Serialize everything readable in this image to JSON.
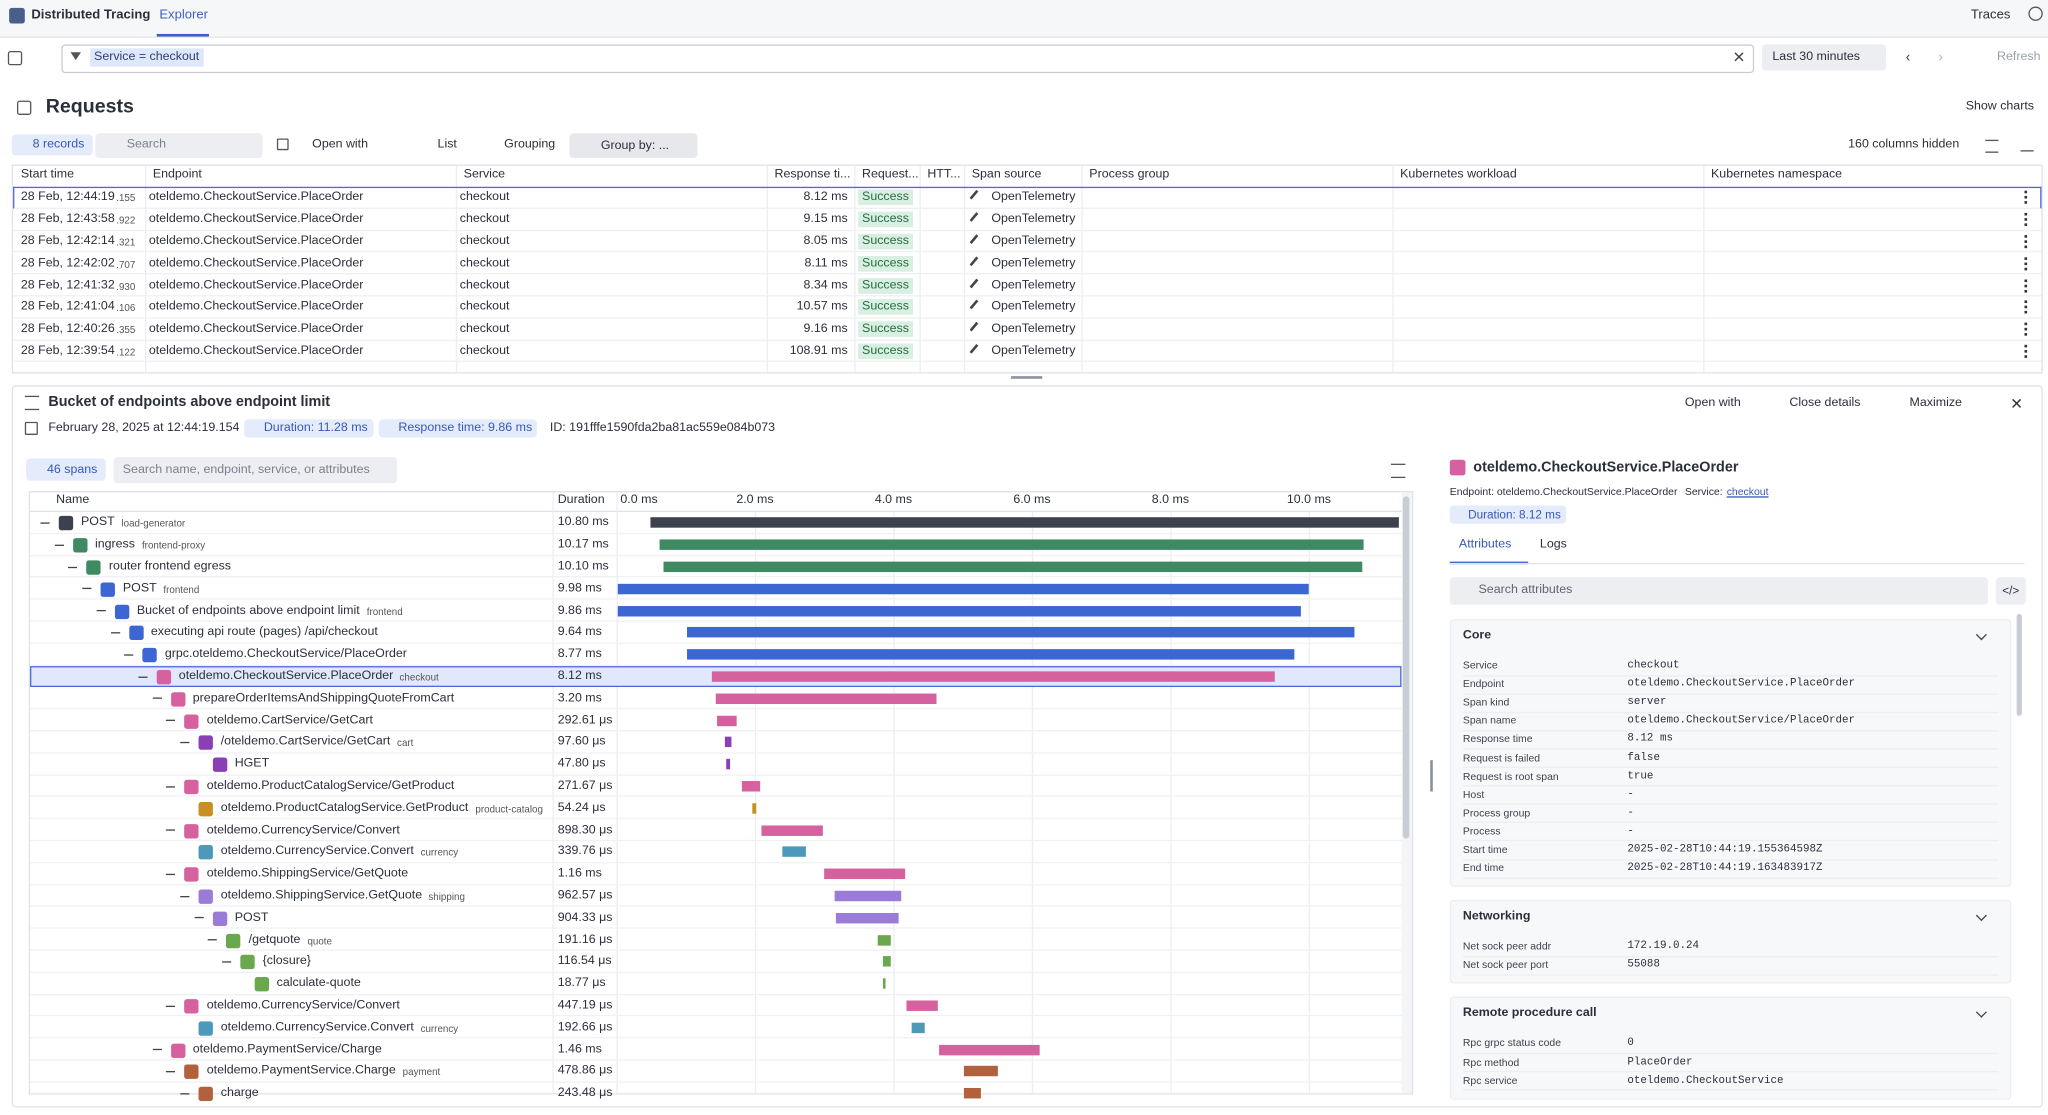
{
  "header": {
    "app": "Distributed Tracing",
    "tab": "Explorer",
    "new_button": "Traces"
  },
  "filter": {
    "token": "Service = checkout",
    "timeframe": "Last 30 minutes",
    "refresh": "Refresh"
  },
  "requests": {
    "title": "Requests",
    "show_charts": "Show charts",
    "records": "8 records",
    "search": "Search",
    "open_with": "Open with",
    "list": "List",
    "grouping": "Grouping",
    "group_by": "Group by: ...",
    "columns_hidden": "160 columns hidden",
    "columns": [
      "Start time",
      "Endpoint",
      "Service",
      "Response ti...",
      "Request...",
      "HTT...",
      "Span source",
      "Process group",
      "Kubernetes workload",
      "Kubernetes namespace"
    ],
    "selected_row": 0,
    "rows": [
      [
        "28 Feb, 12:44:19",
        ".155",
        "oteldemo.CheckoutService.PlaceOrder",
        "checkout",
        "8.12 ms",
        "Success",
        "OpenTelemetry"
      ],
      [
        "28 Feb, 12:43:58",
        ".922",
        "oteldemo.CheckoutService.PlaceOrder",
        "checkout",
        "9.15 ms",
        "Success",
        "OpenTelemetry"
      ],
      [
        "28 Feb, 12:42:14",
        ".321",
        "oteldemo.CheckoutService.PlaceOrder",
        "checkout",
        "8.05 ms",
        "Success",
        "OpenTelemetry"
      ],
      [
        "28 Feb, 12:42:02",
        ".707",
        "oteldemo.CheckoutService.PlaceOrder",
        "checkout",
        "8.11 ms",
        "Success",
        "OpenTelemetry"
      ],
      [
        "28 Feb, 12:41:32",
        ".930",
        "oteldemo.CheckoutService.PlaceOrder",
        "checkout",
        "8.34 ms",
        "Success",
        "OpenTelemetry"
      ],
      [
        "28 Feb, 12:41:04",
        ".106",
        "oteldemo.CheckoutService.PlaceOrder",
        "checkout",
        "10.57 ms",
        "Success",
        "OpenTelemetry"
      ],
      [
        "28 Feb, 12:40:26",
        ".355",
        "oteldemo.CheckoutService.PlaceOrder",
        "checkout",
        "9.16 ms",
        "Success",
        "OpenTelemetry"
      ],
      [
        "28 Feb, 12:39:54",
        ".122",
        "oteldemo.CheckoutService.PlaceOrder",
        "checkout",
        "108.91 ms",
        "Success",
        "OpenTelemetry"
      ]
    ]
  },
  "details": {
    "title": "Bucket of endpoints above endpoint limit",
    "date": "February 28, 2025 at 12:44:19.154",
    "duration": "Duration: 11.28 ms",
    "response_time": "Response time: 9.86 ms",
    "id": "ID: 191fffe1590fda2ba81ac559e084b073",
    "open_with": "Open with",
    "close": "Close details",
    "maximize": "Maximize",
    "spans_count": "46 spans",
    "search": "Search name, endpoint, service, or attributes",
    "columns": [
      "Name",
      "Duration"
    ],
    "timeline": {
      "xlim": [
        0,
        11.28
      ],
      "ticks": [
        {
          "value": 0,
          "label": "0.0 ms"
        },
        {
          "value": 2,
          "label": "2.0 ms"
        },
        {
          "value": 4,
          "label": "4.0 ms"
        },
        {
          "value": 6,
          "label": "6.0 ms"
        },
        {
          "value": 8,
          "label": "8.0 ms"
        },
        {
          "value": 10,
          "label": "10.0 ms"
        }
      ]
    },
    "selected_span": 7,
    "spans": [
      {
        "name": "POST",
        "service": "load-generator",
        "duration": "10.80 ms",
        "duration_ms": 10.8,
        "start_ms": 0.49,
        "depth": 0,
        "color": "#3d414d"
      },
      {
        "name": "ingress",
        "service": "frontend-proxy",
        "duration": "10.17 ms",
        "duration_ms": 10.17,
        "start_ms": 0.62,
        "depth": 1,
        "color": "#3f8a63"
      },
      {
        "name": "router frontend egress",
        "duration": "10.10 ms",
        "duration_ms": 10.1,
        "start_ms": 0.68,
        "depth": 2,
        "color": "#3f8a63"
      },
      {
        "name": "POST",
        "service": "frontend",
        "duration": "9.98 ms",
        "duration_ms": 9.98,
        "start_ms": 0.02,
        "depth": 3,
        "color": "#3c66d2"
      },
      {
        "name": "Bucket of endpoints above endpoint limit",
        "service": "frontend",
        "duration": "9.86 ms",
        "duration_ms": 9.86,
        "start_ms": 0.02,
        "depth": 4,
        "color": "#3c66d2"
      },
      {
        "name": "executing api route (pages) /api/checkout",
        "duration": "9.64 ms",
        "duration_ms": 9.64,
        "start_ms": 1.02,
        "depth": 5,
        "color": "#3c66d2"
      },
      {
        "name": "grpc.oteldemo.CheckoutService/PlaceOrder",
        "duration": "8.77 ms",
        "duration_ms": 8.77,
        "start_ms": 1.02,
        "depth": 6,
        "color": "#3c66d2"
      },
      {
        "name": "oteldemo.CheckoutService.PlaceOrder",
        "service": "checkout",
        "duration": "8.12 ms",
        "duration_ms": 8.12,
        "start_ms": 1.38,
        "depth": 7,
        "color": "#d6619f"
      },
      {
        "name": "prepareOrderItemsAndShippingQuoteFromCart",
        "duration": "3.20 ms",
        "duration_ms": 3.2,
        "start_ms": 1.43,
        "depth": 8,
        "color": "#d6619f"
      },
      {
        "name": "oteldemo.CartService/GetCart",
        "duration": "292.61 μs",
        "duration_ms": 0.29261,
        "start_ms": 1.45,
        "depth": 9,
        "color": "#d6619f"
      },
      {
        "name": "/oteldemo.CartService/GetCart",
        "service": "cart",
        "duration": "97.60 μs",
        "duration_ms": 0.0976,
        "start_ms": 1.57,
        "depth": 10,
        "color": "#8b3fb5"
      },
      {
        "name": "HGET",
        "duration": "47.80 μs",
        "duration_ms": 0.0478,
        "start_ms": 1.59,
        "depth": 11,
        "color": "#8b3fb5"
      },
      {
        "name": "oteldemo.ProductCatalogService/GetProduct",
        "duration": "271.67 μs",
        "duration_ms": 0.27167,
        "start_ms": 1.81,
        "depth": 9,
        "color": "#d6619f"
      },
      {
        "name": "oteldemo.ProductCatalogService.GetProduct",
        "service": "product-catalog",
        "duration": "54.24 μs",
        "duration_ms": 0.05424,
        "start_ms": 1.96,
        "depth": 10,
        "color": "#c9901f"
      },
      {
        "name": "oteldemo.CurrencyService/Convert",
        "duration": "898.30 μs",
        "duration_ms": 0.8983,
        "start_ms": 2.09,
        "depth": 9,
        "color": "#d6619f"
      },
      {
        "name": "oteldemo.CurrencyService.Convert",
        "service": "currency",
        "duration": "339.76 μs",
        "duration_ms": 0.33976,
        "start_ms": 2.4,
        "depth": 10,
        "color": "#4c99b9"
      },
      {
        "name": "oteldemo.ShippingService/GetQuote",
        "duration": "1.16 ms",
        "duration_ms": 1.16,
        "start_ms": 3.0,
        "depth": 9,
        "color": "#d6619f"
      },
      {
        "name": "oteldemo.ShippingService.GetQuote",
        "service": "shipping",
        "duration": "962.57 μs",
        "duration_ms": 0.96257,
        "start_ms": 3.15,
        "depth": 10,
        "color": "#9b7bd8"
      },
      {
        "name": "POST",
        "duration": "904.33 μs",
        "duration_ms": 0.90433,
        "start_ms": 3.17,
        "depth": 11,
        "color": "#9b7bd8"
      },
      {
        "name": "/getquote",
        "service": "quote",
        "duration": "191.16 μs",
        "duration_ms": 0.19116,
        "start_ms": 3.77,
        "depth": 12,
        "color": "#6aa84f"
      },
      {
        "name": "{closure}",
        "duration": "116.54 μs",
        "duration_ms": 0.11654,
        "start_ms": 3.85,
        "depth": 13,
        "color": "#6aa84f"
      },
      {
        "name": "calculate-quote",
        "duration": "18.77 μs",
        "duration_ms": 0.01877,
        "start_ms": 3.85,
        "depth": 14,
        "color": "#6aa84f"
      },
      {
        "name": "oteldemo.CurrencyService/Convert",
        "duration": "447.19 μs",
        "duration_ms": 0.44719,
        "start_ms": 4.19,
        "depth": 9,
        "color": "#d6619f"
      },
      {
        "name": "oteldemo.CurrencyService.Convert",
        "service": "currency",
        "duration": "192.66 μs",
        "duration_ms": 0.19266,
        "start_ms": 4.26,
        "depth": 10,
        "color": "#4c99b9"
      },
      {
        "name": "oteldemo.PaymentService/Charge",
        "duration": "1.46 ms",
        "duration_ms": 1.46,
        "start_ms": 4.66,
        "depth": 8,
        "color": "#d6619f"
      },
      {
        "name": "oteldemo.PaymentService.Charge",
        "service": "payment",
        "duration": "478.86 μs",
        "duration_ms": 0.47886,
        "start_ms": 5.02,
        "depth": 9,
        "color": "#b1613b"
      },
      {
        "name": "charge",
        "duration": "243.48 μs",
        "duration_ms": 0.24348,
        "start_ms": 5.02,
        "depth": 10,
        "color": "#b1613b"
      }
    ]
  },
  "span_panel": {
    "title": "oteldemo.CheckoutService.PlaceOrder",
    "endpoint": "Endpoint: oteldemo.CheckoutService.PlaceOrder",
    "service_label": "Service:",
    "service": "checkout",
    "duration": "Duration: 8.12 ms",
    "tabs": [
      "Attributes",
      "Logs"
    ],
    "search": "Search attributes",
    "sections": [
      {
        "title": "Core",
        "rows": [
          [
            "Service",
            "checkout"
          ],
          [
            "Endpoint",
            "oteldemo.CheckoutService.PlaceOrder"
          ],
          [
            "Span kind",
            "server"
          ],
          [
            "Span name",
            "oteldemo.CheckoutService/PlaceOrder"
          ],
          [
            "Response time",
            "8.12 ms"
          ],
          [
            "Request is failed",
            "false"
          ],
          [
            "Request is root span",
            "true"
          ],
          [
            "Host",
            "-"
          ],
          [
            "Process group",
            "-"
          ],
          [
            "Process",
            "-"
          ],
          [
            "Start time",
            "2025-02-28T10:44:19.155364598Z"
          ],
          [
            "End time",
            "2025-02-28T10:44:19.163483917Z"
          ]
        ]
      },
      {
        "title": "Networking",
        "rows": [
          [
            "Net sock peer addr",
            "172.19.0.24"
          ],
          [
            "Net sock peer port",
            "55088"
          ]
        ]
      },
      {
        "title": "Remote procedure call",
        "rows": [
          [
            "Rpc grpc status code",
            "0"
          ],
          [
            "Rpc method",
            "PlaceOrder"
          ],
          [
            "Rpc service",
            "oteldemo.CheckoutService"
          ]
        ]
      }
    ]
  }
}
